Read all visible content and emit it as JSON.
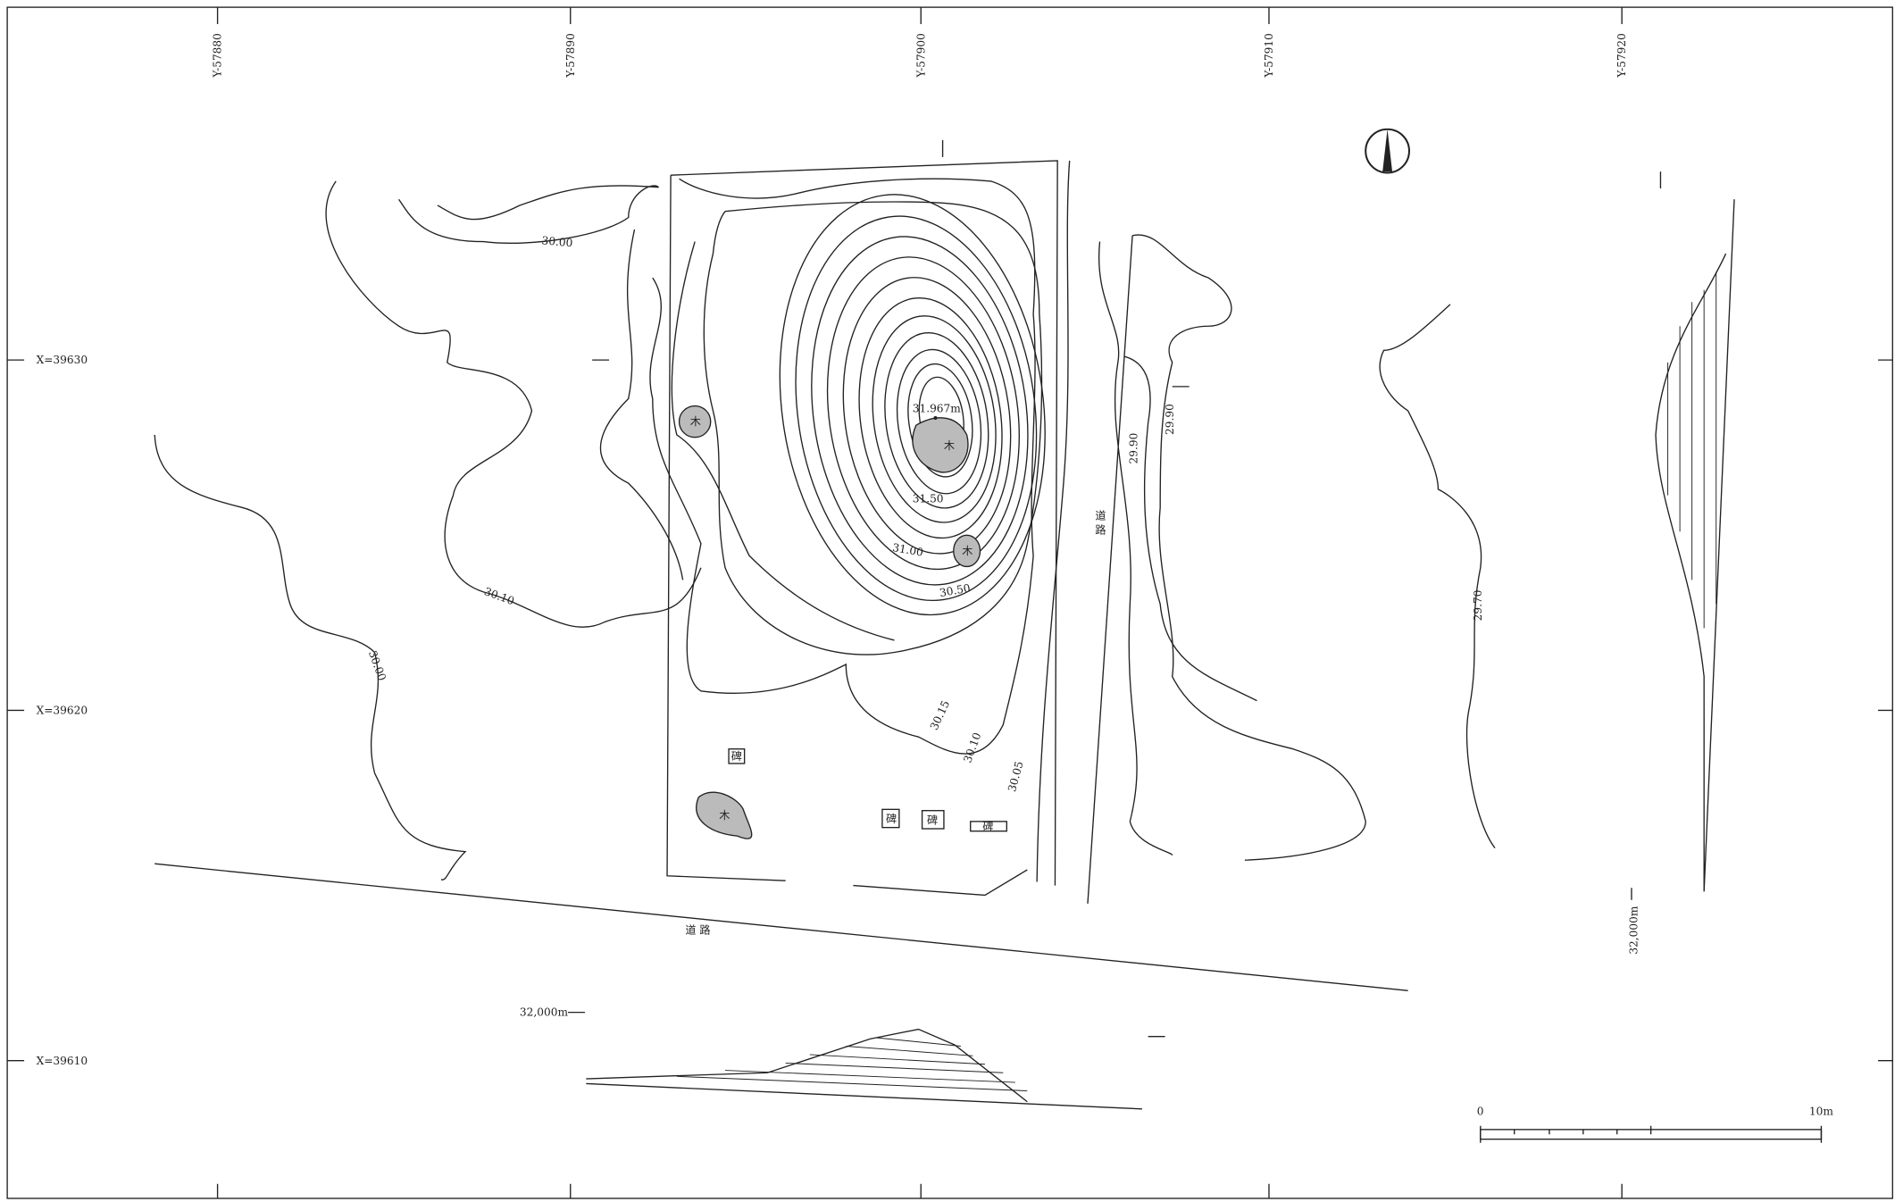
{
  "grid": {
    "y_labels": [
      "Y-57880",
      "Y-57890",
      "Y-57900",
      "Y-57910",
      "Y-57920"
    ],
    "x_labels": [
      "X=39630",
      "X=39620",
      "X=39610"
    ]
  },
  "contour_labels": [
    "30.00",
    "30.10",
    "30.00",
    "31.50",
    "31.00",
    "30.50",
    "30.15",
    "30.10",
    "30.05",
    "29.90",
    "29.90",
    "29.70"
  ],
  "spot_height": "31.967m",
  "roads": [
    "道 路",
    "道 路"
  ],
  "monuments": [
    "碑",
    "碑",
    "碑",
    "碑"
  ],
  "trees": [
    "木",
    "木",
    "木",
    "木"
  ],
  "profiles": [
    "32,000m",
    "32,000m"
  ],
  "scale": {
    "start": "0",
    "end": "10m"
  }
}
